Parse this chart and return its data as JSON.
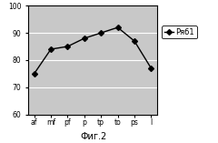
{
  "categories": [
    "af",
    "mf",
    "pf",
    "p",
    "tp",
    "to",
    "ps",
    "l"
  ],
  "values": [
    75,
    84,
    85,
    88,
    90,
    92,
    87,
    77
  ],
  "ylim": [
    60,
    100
  ],
  "yticks": [
    60,
    70,
    80,
    90,
    100
  ],
  "line_color": "#000000",
  "marker": "D",
  "marker_size": 3,
  "legend_label": "Ряб1",
  "title": "Фиг.2",
  "bg_color": "#c8c8c8",
  "fig_color": "#ffffff",
  "grid_color": "#ffffff",
  "title_fontsize": 7,
  "tick_fontsize": 5.5,
  "legend_fontsize": 6
}
